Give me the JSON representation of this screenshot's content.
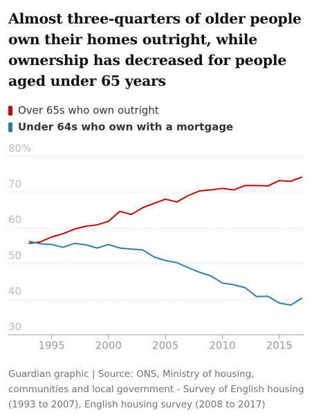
{
  "chart_data": {
    "type": "line",
    "title": "Almost three-quarters of older people own their homes outright, while ownership has decreased for people aged under 65 years",
    "source": "Guardian graphic | Source: ONS, Ministry of housing, communities and local government - Survey of English housing (1993 to 2007), English housing survey (2008 to 2017)",
    "x": [
      1993,
      1994,
      1995,
      1996,
      1997,
      1998,
      1999,
      2000,
      2001,
      2002,
      2003,
      2004,
      2005,
      2006,
      2007,
      2008,
      2009,
      2010,
      2011,
      2012,
      2013,
      2014,
      2015,
      2016,
      2017
    ],
    "series": [
      {
        "name": "Over 65s who own outright",
        "color": "#c70000",
        "values": [
          55.6,
          56,
          57.4,
          58.3,
          59.6,
          60.4,
          60.8,
          61.8,
          64.6,
          63.7,
          65.6,
          66.8,
          68,
          67.2,
          69,
          70.3,
          70.6,
          71,
          70.6,
          71.8,
          71.8,
          71.7,
          73.2,
          73,
          74.2
        ]
      },
      {
        "name": "Under 64s who own with a mortgage",
        "color": "#2c7fa3",
        "values": [
          56.2,
          55.5,
          55.3,
          54.5,
          55.6,
          55.2,
          54.3,
          55.3,
          54.3,
          54,
          53.8,
          51.8,
          50.8,
          50.2,
          48.8,
          47.5,
          46.5,
          44.5,
          44,
          43.2,
          40.7,
          40.8,
          38.9,
          38.3,
          40.3
        ]
      }
    ],
    "xlim": [
      1991.2,
      2017.2
    ],
    "ylim": [
      30,
      80
    ],
    "xticks": [
      1995,
      2000,
      2005,
      2010,
      2015
    ],
    "yticks": [
      30,
      40,
      50,
      60,
      70,
      {
        "value": 80,
        "label": "80%"
      }
    ],
    "grid": true
  }
}
